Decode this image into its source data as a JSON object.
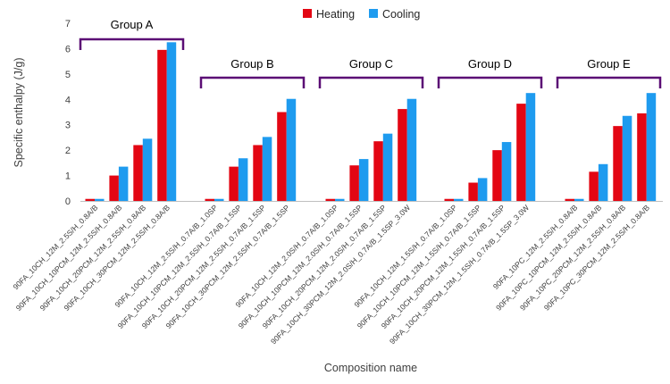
{
  "chart_data": {
    "type": "bar",
    "title": "",
    "xlabel": "Composition name",
    "ylabel": "Specific enthalpy (J/g)",
    "ylim": [
      0,
      7
    ],
    "yticks": [
      0,
      1,
      2,
      3,
      4,
      5,
      6,
      7
    ],
    "grid": false,
    "legend_position": "top",
    "series_colors": [
      "#e30613",
      "#1e9bef"
    ],
    "series": [
      {
        "name": "Heating",
        "values": [
          0.08,
          1.0,
          2.2,
          5.95,
          0.08,
          1.35,
          2.2,
          3.5,
          0.08,
          1.4,
          2.35,
          3.62,
          0.08,
          0.72,
          2.0,
          3.83,
          0.08,
          1.15,
          2.95,
          3.45
        ]
      },
      {
        "name": "Cooling",
        "values": [
          0.08,
          1.35,
          2.45,
          6.25,
          0.08,
          1.68,
          2.52,
          4.02,
          0.08,
          1.65,
          2.65,
          4.02,
          0.08,
          0.9,
          2.32,
          4.25,
          0.08,
          1.45,
          3.35,
          4.25
        ]
      }
    ],
    "categories": [
      "90FA_10CH_12M_2.5S/H_0.8A/B",
      "90FA_10CH_10PCM_12M_2.5S/H_0.8A/B",
      "90FA_10CH_20PCM_12M_2.5S/H_0.8A/B",
      "90FA_10CH_30PCM_12M_2.5S/H_0.8A/B",
      "90FA_10CH_12M_2.5S/H_0.7A/B_1.0SP",
      "90FA_10CH_10PCM_12M_2.5S/H_0.7A/B_1.5SP",
      "90FA_10CH_20PCM_12M_2.5S/H_0.7A/B_1.5SP",
      "90FA_10CH_30PCM_12M_2.5S/H_0.7A/B_1.5SP",
      "90FA_10CH_12M_2.0S/H_0.7A/B_1.0SP",
      "90FA_10CH_10PCM_12M_2.0S/H_0.7A/B_1.5SP",
      "90FA_10CH_20PCM_12M_2.0S/H_0.7A/B_1.5SP",
      "90FA_10CH_30PCM_12M_2.0S/H_0.7A/B_1.5SP_3.0W",
      "90FA_10CH_12M_1.5S/H_0.7A/B_1.0SP",
      "90FA_10CH_10PCM_12M_1.5S/H_0.7A/B_1.5SP",
      "90FA_10CH_20PCM_12M_1.5S/H_0.7A/B_1.5SP",
      "90FA_10CH_30PCM_12M_1.5S/H_0.7A/B_1.5SP_3.0W",
      "90FA_10PC_12M_2.5S/H_0.8A/B",
      "90FA_10PC_10PCM_12M_2.5S/H_0.8A/B",
      "90FA_10PC_20PCM_12M_2.5S/H_0.8A/B",
      "90FA_10PC_30PCM_12M_2.5S/H_0.8A/B"
    ],
    "groups": [
      {
        "name": "Group A",
        "categories_range": [
          0,
          3
        ]
      },
      {
        "name": "Group B",
        "categories_range": [
          4,
          7
        ]
      },
      {
        "name": "Group C",
        "categories_range": [
          8,
          11
        ]
      },
      {
        "name": "Group D",
        "categories_range": [
          12,
          15
        ]
      },
      {
        "name": "Group E",
        "categories_range": [
          16,
          19
        ]
      }
    ],
    "group_color": "#5b0d75"
  }
}
